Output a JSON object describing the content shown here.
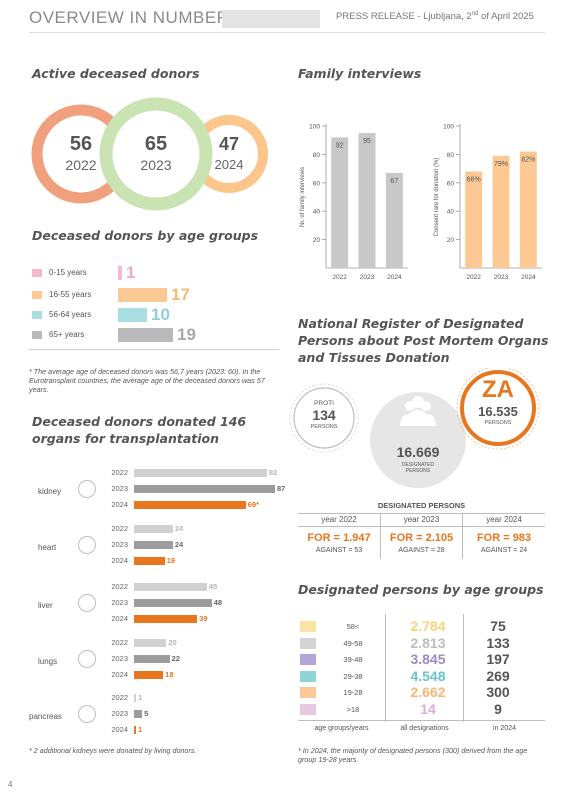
{
  "header": {
    "title": "OVERVIEW IN NUMBERS",
    "press_release": "PRESS RELEASE - Ljubljana, 2",
    "press_release_sup": "nd",
    "press_release_tail": " of April 2025"
  },
  "active_donors": {
    "title": "Active deceased donors",
    "rings": [
      {
        "value": "56",
        "year": "2022",
        "color": "#f1a07d"
      },
      {
        "value": "65",
        "year": "2023",
        "color": "#c9e3b3"
      },
      {
        "value": "47",
        "year": "2024",
        "color": "#fbc58c"
      }
    ]
  },
  "age_groups": {
    "title": "Deceased donors by age groups",
    "rows": [
      {
        "label": "0-15 years",
        "value": "1",
        "color": "#f6b8cf",
        "val_color": "#f4a7c2"
      },
      {
        "label": "16-55 years",
        "value": "17",
        "color": "#fcc994",
        "val_color": "#f7b777"
      },
      {
        "label": "56-64 years",
        "value": "10",
        "color": "#a8dde2",
        "val_color": "#8ed1d8"
      },
      {
        "label": "65+ years",
        "value": "19",
        "color": "#b9b9bb",
        "val_color": "#a8a8aa"
      }
    ],
    "note": "* The average age of deceased donors was 56,7 years (2023: 60). In the Eurotransplant countries, the average age of the deceased donors was 57 years."
  },
  "organs": {
    "title_line1": "Deceased donors donated 146",
    "title_line2": "organs for transplantation",
    "years": [
      "2022",
      "2023",
      "2024"
    ],
    "items": [
      {
        "name": "kidney",
        "icon": "kidney-icon",
        "values": [
          82,
          87,
          69
        ],
        "labels": [
          "82",
          "87",
          "69*"
        ]
      },
      {
        "name": "heart",
        "icon": "heart-icon",
        "values": [
          24,
          24,
          19
        ],
        "labels": [
          "24",
          "24",
          "19"
        ]
      },
      {
        "name": "liver",
        "icon": "liver-icon",
        "values": [
          45,
          48,
          39
        ],
        "labels": [
          "45",
          "48",
          "39"
        ]
      },
      {
        "name": "lungs",
        "icon": "lungs-icon",
        "values": [
          20,
          22,
          18
        ],
        "labels": [
          "20",
          "22",
          "18"
        ]
      },
      {
        "name": "pancreas",
        "icon": "pancreas-icon",
        "values": [
          1,
          5,
          1
        ],
        "labels": [
          "1",
          "5",
          "1"
        ]
      }
    ],
    "note": "* 2 additional kidneys were donated by living donors."
  },
  "family_interviews": {
    "title": "Family interviews"
  },
  "chart_data": [
    {
      "type": "bar",
      "categories": [
        "2022",
        "2023",
        "2024"
      ],
      "values": [
        92,
        95,
        67
      ],
      "ylabel": "Nr. of family interviews",
      "ylim": [
        0,
        100
      ],
      "yticks": [
        "20",
        "40",
        "60",
        "80",
        "100"
      ],
      "color": "#c8c8ca"
    },
    {
      "type": "bar",
      "categories": [
        "2022",
        "2023",
        "2024"
      ],
      "values": [
        68,
        79,
        82
      ],
      "labels": [
        "68%",
        "79%",
        "82%"
      ],
      "ylabel": "Consent rate for donation (%)",
      "ylim": [
        0,
        100
      ],
      "yticks": [
        "20",
        "40",
        "60",
        "80",
        "100"
      ],
      "color": "#fcc994"
    }
  ],
  "register": {
    "title_line1": "National Register of Designated",
    "title_line2": "Persons about Post Mortem Organs",
    "title_line3": "and Tissues Donation",
    "proti_label": "PROTI",
    "proti_value": "134",
    "proti_unit": "PERSONS",
    "za_label": "ZA",
    "za_value": "16.535",
    "za_unit": "PERSONS",
    "total_value": "16.669",
    "total_unit_1": "DESIGNATED",
    "total_unit_2": "PERSONS",
    "table_title": "DESIGNATED PERSONS",
    "columns": [
      {
        "year": "year 2022",
        "for": "FOR = 1.947",
        "against": "AGAINST = 53"
      },
      {
        "year": "year 2023",
        "for": "FOR = 2.105",
        "against": "AGAINST = 28"
      },
      {
        "year": "year 2024",
        "for": "FOR = 983",
        "against": "AGAINST = 24"
      }
    ]
  },
  "designated_age": {
    "title": "Designated persons by age groups",
    "rows": [
      {
        "label": "58<",
        "all": "2.784",
        "y2024": "75",
        "color": "#fbe3a3",
        "all_color": "#f7d37a"
      },
      {
        "label": "49-58",
        "all": "2.813",
        "y2024": "133",
        "color": "#d4d4d6",
        "all_color": "#bdbdbf"
      },
      {
        "label": "39-48",
        "all": "3.845",
        "y2024": "197",
        "color": "#b3a6d6",
        "all_color": "#9a8ac6"
      },
      {
        "label": "29-38",
        "all": "4.548",
        "y2024": "269",
        "color": "#8fd3d6",
        "all_color": "#6ac4c9"
      },
      {
        "label": "19-28",
        "all": "2.662",
        "y2024": "300",
        "color": "#fcc994",
        "all_color": "#f7b777"
      },
      {
        "label": ">18",
        "all": "14",
        "y2024": "9",
        "color": "#e8c8e0",
        "all_color": "#d9aed0"
      }
    ],
    "col_labels": [
      "age groups/years",
      "all designations",
      "in 2024"
    ],
    "note": "* In 2024, the majority of designated persons (300) derived from the age group 19-28 years."
  },
  "footer": {
    "page_number": "4"
  }
}
